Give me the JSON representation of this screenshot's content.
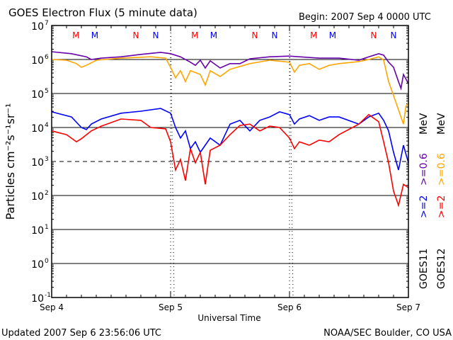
{
  "chart_data": {
    "type": "line",
    "title": "GOES Electron Flux (5 minute data)",
    "begin": "Begin: 2007 Sep 4 0000 UTC",
    "xlabel": "Universal Time",
    "ylabel": "Particles cm⁻²s⁻¹sr⁻¹",
    "yscale": "log",
    "ylim_log10": [
      -1,
      7
    ],
    "yticks": [
      {
        "base": "10",
        "exp": "7"
      },
      {
        "base": "10",
        "exp": "6"
      },
      {
        "base": "10",
        "exp": "5"
      },
      {
        "base": "10",
        "exp": "4"
      },
      {
        "base": "10",
        "exp": "3"
      },
      {
        "base": "10",
        "exp": "2"
      },
      {
        "base": "10",
        "exp": "1"
      },
      {
        "base": "10",
        "exp": "0"
      },
      {
        "base": "10",
        "exp": "-1"
      }
    ],
    "xlim_hours": [
      0,
      72
    ],
    "xticks": [
      "Sep 4",
      "Sep 5",
      "Sep 6",
      "Sep 7"
    ],
    "threshold_log10": 3,
    "markers": [
      {
        "label": "M",
        "hour": 4.9,
        "color": "#ff0000"
      },
      {
        "label": "M",
        "hour": 8.7,
        "color": "#0000ff"
      },
      {
        "label": "N",
        "hour": 17,
        "color": "#ff0000"
      },
      {
        "label": "N",
        "hour": 21,
        "color": "#0000ff"
      }
    ],
    "legend": {
      "goes11": "GOES11",
      "goes12": "GOES12",
      "g11_hi": ">=2",
      "g11_lo": ">=0.6",
      "g12_hi": ">=2",
      "g12_lo": ">=0.6",
      "unit": "MeV"
    },
    "series": [
      {
        "name": "GOES11 >=0.6 MeV",
        "color": "#6600aa",
        "points": [
          [
            0,
            6.23
          ],
          [
            4,
            6.17
          ],
          [
            7,
            6.08
          ],
          [
            8,
            6.0
          ],
          [
            10,
            6.04
          ],
          [
            14,
            6.08
          ],
          [
            18,
            6.15
          ],
          [
            22,
            6.21
          ],
          [
            24,
            6.17
          ],
          [
            26,
            6.08
          ],
          [
            28,
            5.92
          ],
          [
            29,
            5.83
          ],
          [
            30,
            5.98
          ],
          [
            31,
            5.75
          ],
          [
            32,
            5.96
          ],
          [
            34,
            5.75
          ],
          [
            36,
            5.88
          ],
          [
            38,
            5.88
          ],
          [
            40,
            6.02
          ],
          [
            44,
            6.08
          ],
          [
            48,
            6.1
          ],
          [
            50,
            6.08
          ],
          [
            54,
            6.04
          ],
          [
            58,
            6.04
          ],
          [
            62,
            5.98
          ],
          [
            64,
            6.08
          ],
          [
            66,
            6.17
          ],
          [
            67,
            6.13
          ],
          [
            68,
            5.92
          ],
          [
            69,
            5.77
          ],
          [
            70,
            5.35
          ],
          [
            70.5,
            5.15
          ],
          [
            71,
            5.56
          ],
          [
            72,
            5.29
          ]
        ]
      },
      {
        "name": "GOES12 >=0.6 MeV",
        "color": "#ffa500",
        "points": [
          [
            0,
            6.0
          ],
          [
            3,
            5.98
          ],
          [
            5,
            5.88
          ],
          [
            6,
            5.77
          ],
          [
            7,
            5.83
          ],
          [
            9,
            5.98
          ],
          [
            14,
            6.04
          ],
          [
            20,
            6.08
          ],
          [
            23,
            6.04
          ],
          [
            24,
            5.77
          ],
          [
            25,
            5.46
          ],
          [
            26,
            5.67
          ],
          [
            27,
            5.35
          ],
          [
            28,
            5.67
          ],
          [
            30,
            5.56
          ],
          [
            31,
            5.25
          ],
          [
            32,
            5.67
          ],
          [
            34,
            5.5
          ],
          [
            36,
            5.71
          ],
          [
            40,
            5.88
          ],
          [
            44,
            5.98
          ],
          [
            48,
            5.92
          ],
          [
            49,
            5.63
          ],
          [
            50,
            5.83
          ],
          [
            52,
            5.88
          ],
          [
            54,
            5.71
          ],
          [
            56,
            5.83
          ],
          [
            58,
            5.88
          ],
          [
            62,
            5.94
          ],
          [
            64,
            6.0
          ],
          [
            66,
            6.08
          ],
          [
            67,
            5.98
          ],
          [
            68,
            5.35
          ],
          [
            69,
            4.94
          ],
          [
            70,
            4.52
          ],
          [
            71,
            4.1
          ],
          [
            71.5,
            4.63
          ],
          [
            72,
            4.73
          ]
        ]
      },
      {
        "name": "GOES11 >=2 MeV",
        "color": "#0000ff",
        "points": [
          [
            0,
            4.46
          ],
          [
            4,
            4.31
          ],
          [
            6,
            4.0
          ],
          [
            7,
            3.94
          ],
          [
            8,
            4.1
          ],
          [
            10,
            4.25
          ],
          [
            14,
            4.42
          ],
          [
            18,
            4.48
          ],
          [
            22,
            4.56
          ],
          [
            24,
            4.42
          ],
          [
            25,
            4.0
          ],
          [
            26,
            3.69
          ],
          [
            27,
            3.9
          ],
          [
            28,
            3.38
          ],
          [
            29,
            3.58
          ],
          [
            30,
            3.27
          ],
          [
            32,
            3.69
          ],
          [
            34,
            3.48
          ],
          [
            36,
            4.1
          ],
          [
            38,
            4.21
          ],
          [
            40,
            3.9
          ],
          [
            42,
            4.21
          ],
          [
            44,
            4.31
          ],
          [
            46,
            4.46
          ],
          [
            48,
            4.38
          ],
          [
            49,
            4.1
          ],
          [
            50,
            4.25
          ],
          [
            52,
            4.35
          ],
          [
            54,
            4.21
          ],
          [
            56,
            4.31
          ],
          [
            58,
            4.31
          ],
          [
            62,
            4.1
          ],
          [
            64,
            4.31
          ],
          [
            66,
            4.42
          ],
          [
            67,
            4.21
          ],
          [
            68,
            3.9
          ],
          [
            69,
            3.27
          ],
          [
            70,
            2.75
          ],
          [
            71,
            3.48
          ],
          [
            72,
            2.96
          ]
        ]
      },
      {
        "name": "GOES12 >=2 MeV",
        "color": "#ff0000",
        "points": [
          [
            0,
            3.9
          ],
          [
            3,
            3.79
          ],
          [
            5,
            3.58
          ],
          [
            6,
            3.67
          ],
          [
            8,
            3.9
          ],
          [
            10,
            4.04
          ],
          [
            14,
            4.25
          ],
          [
            18,
            4.21
          ],
          [
            20,
            4.0
          ],
          [
            23,
            3.96
          ],
          [
            24,
            3.58
          ],
          [
            25,
            2.75
          ],
          [
            26,
            3.06
          ],
          [
            27,
            2.44
          ],
          [
            28,
            3.38
          ],
          [
            29,
            2.96
          ],
          [
            30,
            3.27
          ],
          [
            31,
            2.33
          ],
          [
            32,
            3.33
          ],
          [
            34,
            3.48
          ],
          [
            36,
            3.79
          ],
          [
            38,
            4.06
          ],
          [
            40,
            4.1
          ],
          [
            42,
            3.9
          ],
          [
            44,
            4.04
          ],
          [
            46,
            4.0
          ],
          [
            48,
            3.69
          ],
          [
            49,
            3.38
          ],
          [
            50,
            3.58
          ],
          [
            52,
            3.48
          ],
          [
            54,
            3.63
          ],
          [
            56,
            3.58
          ],
          [
            58,
            3.79
          ],
          [
            62,
            4.1
          ],
          [
            64,
            4.38
          ],
          [
            66,
            4.17
          ],
          [
            67,
            3.58
          ],
          [
            68,
            2.96
          ],
          [
            69,
            2.13
          ],
          [
            70,
            1.71
          ],
          [
            71,
            2.33
          ],
          [
            72,
            2.23
          ]
        ]
      }
    ]
  },
  "footer": {
    "updated": "Updated 2007 Sep  6 23:56:06 UTC",
    "source": "NOAA/SEC Boulder, CO USA"
  }
}
